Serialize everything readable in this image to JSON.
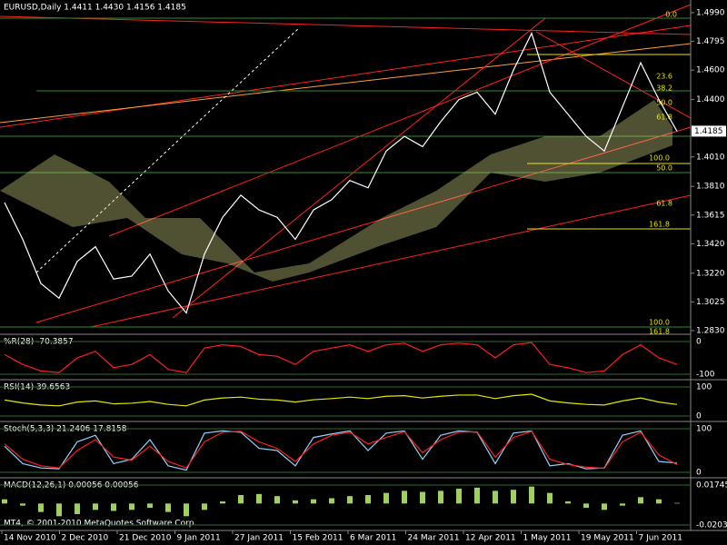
{
  "chart_data": {
    "type": "line",
    "title": "EURUSD,Daily  1.4411 1.4430 1.4156 1.4185",
    "footer": "MT4, © 2001-2010 MetaQuotes Software Corp.",
    "last_price": 1.4185,
    "color": "#ffffff",
    "values": [
      1.37,
      1.345,
      1.315,
      1.305,
      1.33,
      1.34,
      1.318,
      1.32,
      1.335,
      1.31,
      1.295,
      1.335,
      1.36,
      1.375,
      1.365,
      1.36,
      1.345,
      1.365,
      1.372,
      1.385,
      1.38,
      1.405,
      1.415,
      1.408,
      1.425,
      1.44,
      1.445,
      1.43,
      1.46,
      1.485,
      1.445,
      1.43,
      1.415,
      1.405,
      1.435,
      1.465,
      1.44,
      1.4185
    ],
    "ylim": [
      1.2805,
      1.5064
    ],
    "yticks": [
      {
        "value": 1.499,
        "label": "1.4990"
      },
      1.4795,
      {
        "value": 1.46,
        "label": "1.4600"
      },
      {
        "value": 1.44,
        "label": "1.4400"
      },
      {
        "value": 1.401,
        "label": "1.4010"
      },
      {
        "value": 1.381,
        "label": "1.3810"
      },
      1.3615,
      {
        "value": 1.342,
        "label": "1.3420"
      },
      {
        "value": 1.322,
        "label": "1.3220"
      },
      1.3025,
      {
        "value": 1.283,
        "label": "1.2830"
      }
    ],
    "fib_labels": [
      "0.0",
      "23.6",
      "38.2",
      "50.0",
      "61.8",
      "100.0",
      "50.0",
      "61.8",
      "161.8",
      "100.0",
      "161.8"
    ],
    "x_labels": [
      "14 Nov 2010",
      "2 Dec 2010",
      "21 Dec 2010",
      "9 Jan 2011",
      "27 Jan 2011",
      "15 Feb 2011",
      "6 Mar 2011",
      "24 Mar 2011",
      "12 Apr 2011",
      "1 May 2011",
      "19 May 2011",
      "7 Jun 2011"
    ],
    "indicators": [
      {
        "name": "%R(28) -70.3857",
        "color": "#ff2020",
        "type": "line",
        "ylim": [
          -100,
          0
        ],
        "yticks": [
          0,
          -100
        ],
        "values": [
          -40,
          -70,
          -90,
          -95,
          -50,
          -30,
          -80,
          -70,
          -40,
          -85,
          -95,
          -20,
          -10,
          -15,
          -40,
          -45,
          -70,
          -30,
          -20,
          -10,
          -30,
          -10,
          -5,
          -30,
          -10,
          -5,
          -10,
          -50,
          -10,
          -3,
          -70,
          -80,
          -95,
          -90,
          -40,
          -10,
          -50,
          -70.3857
        ]
      },
      {
        "name": "RSI(14) 39.6563",
        "color": "#e6e600",
        "type": "line",
        "ylim": [
          0,
          100
        ],
        "yticks": [
          100,
          0
        ],
        "values": [
          55,
          45,
          38,
          35,
          48,
          52,
          42,
          44,
          50,
          40,
          35,
          55,
          62,
          65,
          58,
          55,
          48,
          56,
          60,
          65,
          60,
          68,
          70,
          62,
          68,
          72,
          72,
          60,
          70,
          75,
          52,
          45,
          40,
          38,
          52,
          62,
          48,
          39.6563
        ]
      },
      {
        "name": "Stoch(5,3,3) 21.2406 17.8158",
        "color": "#8fd3ff",
        "type": "line",
        "ylim": [
          0,
          100
        ],
        "yticks": [
          100,
          0
        ],
        "values": [
          60,
          20,
          10,
          8,
          70,
          85,
          20,
          30,
          75,
          15,
          5,
          90,
          95,
          92,
          55,
          50,
          15,
          80,
          88,
          95,
          50,
          90,
          95,
          30,
          85,
          95,
          92,
          20,
          90,
          95,
          15,
          20,
          8,
          10,
          85,
          95,
          25,
          21.2406
        ],
        "signal_color": "#ff2020",
        "signal": [
          65,
          30,
          15,
          10,
          50,
          75,
          35,
          28,
          60,
          25,
          10,
          70,
          92,
          94,
          70,
          55,
          25,
          65,
          85,
          92,
          65,
          80,
          93,
          45,
          75,
          92,
          93,
          35,
          80,
          94,
          30,
          18,
          12,
          9,
          70,
          92,
          40,
          17.8158
        ]
      },
      {
        "name": "MACD(12,26,1) 0.00056 0.00056",
        "color": "#a0d060",
        "type": "bar",
        "ylim": [
          -0.02032,
          0.01745
        ],
        "yticks": [
          0.01745,
          -0.02032
        ],
        "values": [
          0.004,
          -0.002,
          -0.008,
          -0.012,
          -0.01,
          -0.006,
          -0.007,
          -0.006,
          -0.004,
          -0.008,
          -0.012,
          -0.006,
          0.002,
          0.008,
          0.009,
          0.007,
          0.003,
          0.004,
          0.005,
          0.007,
          0.008,
          0.01,
          0.012,
          0.011,
          0.012,
          0.014,
          0.015,
          0.012,
          0.013,
          0.016,
          0.01,
          0.002,
          -0.004,
          -0.006,
          -0.002,
          0.006,
          0.004,
          0.00056
        ]
      }
    ]
  }
}
